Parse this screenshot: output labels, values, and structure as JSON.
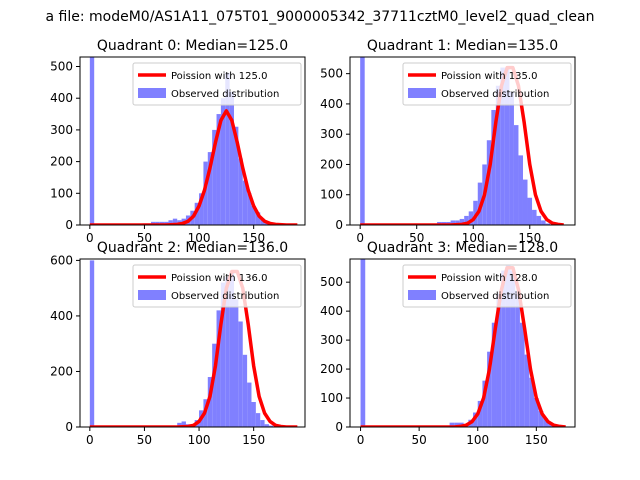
{
  "figure": {
    "suptitle": "a file: modeM0/AS1A11_075T01_9000005342_37711cztM0_level2_quad_clean"
  },
  "colors": {
    "line": "#ff0000",
    "bars": "#8080ff"
  },
  "chart_data": [
    {
      "type": "bar",
      "title": "Quadrant 0: Median=125.0",
      "xlim": [
        -9,
        197
      ],
      "ylim": [
        0,
        530
      ],
      "xticks": [
        0,
        50,
        100,
        150
      ],
      "yticks": [
        0,
        100,
        200,
        300,
        400,
        500
      ],
      "legend": {
        "placement": "top-right",
        "entries": [
          "Poission with 125.0",
          "Observed distribution"
        ]
      },
      "series": [
        {
          "name": "Observed distribution",
          "type": "histogram",
          "bin_width": 4,
          "bins": [
            0,
            4,
            8,
            12,
            16,
            20,
            24,
            28,
            32,
            36,
            40,
            44,
            48,
            52,
            56,
            60,
            64,
            68,
            72,
            76,
            80,
            84,
            88,
            92,
            96,
            100,
            104,
            108,
            112,
            116,
            120,
            124,
            128,
            132,
            136,
            140,
            144,
            148,
            152,
            156,
            160,
            164,
            168,
            172,
            176,
            180,
            184
          ],
          "counts": [
            530,
            2,
            2,
            2,
            2,
            2,
            2,
            2,
            2,
            2,
            2,
            2,
            5,
            5,
            10,
            10,
            10,
            10,
            15,
            20,
            15,
            20,
            30,
            45,
            70,
            100,
            200,
            230,
            300,
            350,
            400,
            480,
            420,
            310,
            210,
            140,
            100,
            60,
            40,
            20,
            10,
            5,
            3,
            2,
            1,
            1,
            0
          ]
        },
        {
          "name": "Poission with 125.0",
          "type": "line",
          "x": [
            0,
            50,
            70,
            80,
            85,
            90,
            95,
            100,
            105,
            110,
            115,
            120,
            125,
            130,
            135,
            140,
            145,
            150,
            155,
            160,
            165,
            170,
            180,
            190
          ],
          "y": [
            0,
            0,
            0,
            2,
            5,
            12,
            28,
            60,
            110,
            180,
            260,
            330,
            360,
            330,
            260,
            180,
            110,
            60,
            28,
            12,
            5,
            2,
            0,
            0
          ]
        }
      ]
    },
    {
      "type": "bar",
      "title": "Quadrant 1: Median=135.0",
      "xlim": [
        -9,
        190
      ],
      "ylim": [
        0,
        555
      ],
      "xticks": [
        0,
        50,
        100,
        150
      ],
      "yticks": [
        0,
        100,
        200,
        300,
        400,
        500
      ],
      "legend": {
        "placement": "top-right",
        "entries": [
          "Poission with 135.0",
          "Observed distribution"
        ]
      },
      "series": [
        {
          "name": "Observed distribution",
          "type": "histogram",
          "bin_width": 4,
          "bins": [
            0,
            4,
            8,
            12,
            16,
            20,
            24,
            28,
            32,
            36,
            40,
            44,
            48,
            52,
            56,
            60,
            64,
            68,
            72,
            76,
            80,
            84,
            88,
            92,
            96,
            100,
            104,
            108,
            112,
            116,
            120,
            124,
            128,
            132,
            136,
            140,
            144,
            148,
            152,
            156,
            160,
            164,
            168,
            172,
            176
          ],
          "counts": [
            555,
            0,
            0,
            0,
            0,
            0,
            0,
            0,
            0,
            0,
            0,
            0,
            0,
            0,
            0,
            0,
            0,
            10,
            10,
            10,
            15,
            15,
            20,
            30,
            45,
            80,
            140,
            200,
            280,
            380,
            460,
            520,
            520,
            440,
            330,
            230,
            150,
            90,
            50,
            30,
            15,
            5,
            2,
            1,
            0
          ]
        },
        {
          "name": "Poission with 135.0",
          "type": "line",
          "x": [
            0,
            50,
            80,
            90,
            95,
            100,
            105,
            110,
            115,
            120,
            125,
            130,
            135,
            140,
            145,
            150,
            155,
            160,
            165,
            170,
            175,
            180
          ],
          "y": [
            0,
            0,
            0,
            2,
            6,
            18,
            45,
            100,
            200,
            340,
            460,
            520,
            520,
            460,
            340,
            200,
            100,
            45,
            18,
            6,
            2,
            0
          ]
        }
      ]
    },
    {
      "type": "bar",
      "title": "Quadrant 2: Median=136.0",
      "xlim": [
        -9,
        197
      ],
      "ylim": [
        0,
        605
      ],
      "xticks": [
        0,
        50,
        100,
        150
      ],
      "yticks": [
        0,
        200,
        400,
        600
      ],
      "legend": {
        "placement": "top-right",
        "entries": [
          "Poission with 136.0",
          "Observed distribution"
        ]
      },
      "series": [
        {
          "name": "Observed distribution",
          "type": "histogram",
          "bin_width": 4,
          "bins": [
            0,
            4,
            8,
            12,
            16,
            20,
            24,
            28,
            32,
            36,
            40,
            44,
            48,
            52,
            56,
            60,
            64,
            68,
            72,
            76,
            80,
            84,
            88,
            92,
            96,
            100,
            104,
            108,
            112,
            116,
            120,
            124,
            128,
            132,
            136,
            140,
            144,
            148,
            152,
            156,
            160,
            164,
            168,
            172,
            176,
            180,
            184
          ],
          "counts": [
            600,
            0,
            0,
            0,
            0,
            0,
            0,
            0,
            0,
            0,
            0,
            0,
            0,
            0,
            0,
            0,
            0,
            0,
            0,
            0,
            15,
            20,
            10,
            10,
            25,
            60,
            100,
            180,
            300,
            420,
            520,
            540,
            560,
            460,
            380,
            260,
            160,
            90,
            50,
            25,
            10,
            5,
            2,
            1,
            0,
            0,
            0
          ]
        },
        {
          "name": "Poission with 136.0",
          "type": "line",
          "x": [
            0,
            50,
            80,
            90,
            95,
            100,
            105,
            110,
            115,
            120,
            125,
            130,
            135,
            140,
            145,
            150,
            155,
            160,
            165,
            170,
            175,
            180,
            190
          ],
          "y": [
            0,
            0,
            0,
            2,
            6,
            20,
            50,
            110,
            220,
            370,
            500,
            560,
            560,
            500,
            370,
            220,
            110,
            50,
            20,
            6,
            2,
            0,
            0
          ]
        }
      ]
    },
    {
      "type": "bar",
      "title": "Quadrant 3: Median=128.0",
      "xlim": [
        -9,
        183
      ],
      "ylim": [
        0,
        580
      ],
      "xticks": [
        0,
        50,
        100,
        150
      ],
      "yticks": [
        0,
        100,
        200,
        300,
        400,
        500
      ],
      "legend": {
        "placement": "top-right",
        "entries": [
          "Poission with 128.0",
          "Observed distribution"
        ]
      },
      "series": [
        {
          "name": "Observed distribution",
          "type": "histogram",
          "bin_width": 4,
          "bins": [
            0,
            4,
            8,
            12,
            16,
            20,
            24,
            28,
            32,
            36,
            40,
            44,
            48,
            52,
            56,
            60,
            64,
            68,
            72,
            76,
            80,
            84,
            88,
            92,
            96,
            100,
            104,
            108,
            112,
            116,
            120,
            124,
            128,
            132,
            136,
            140,
            144,
            148,
            152,
            156,
            160,
            164,
            168,
            172
          ],
          "counts": [
            580,
            0,
            0,
            0,
            0,
            0,
            0,
            0,
            0,
            0,
            0,
            0,
            0,
            0,
            0,
            0,
            0,
            0,
            0,
            15,
            15,
            15,
            10,
            25,
            50,
            90,
            160,
            260,
            360,
            460,
            540,
            560,
            540,
            470,
            360,
            250,
            170,
            100,
            55,
            30,
            15,
            5,
            2,
            1
          ]
        },
        {
          "name": "Poission with 128.0",
          "type": "line",
          "x": [
            0,
            50,
            80,
            85,
            90,
            95,
            100,
            105,
            110,
            115,
            120,
            125,
            130,
            135,
            140,
            145,
            150,
            155,
            160,
            165,
            170,
            175
          ],
          "y": [
            0,
            0,
            0,
            2,
            6,
            18,
            45,
            100,
            200,
            340,
            470,
            550,
            550,
            470,
            340,
            200,
            100,
            45,
            18,
            6,
            2,
            0
          ]
        }
      ]
    }
  ]
}
